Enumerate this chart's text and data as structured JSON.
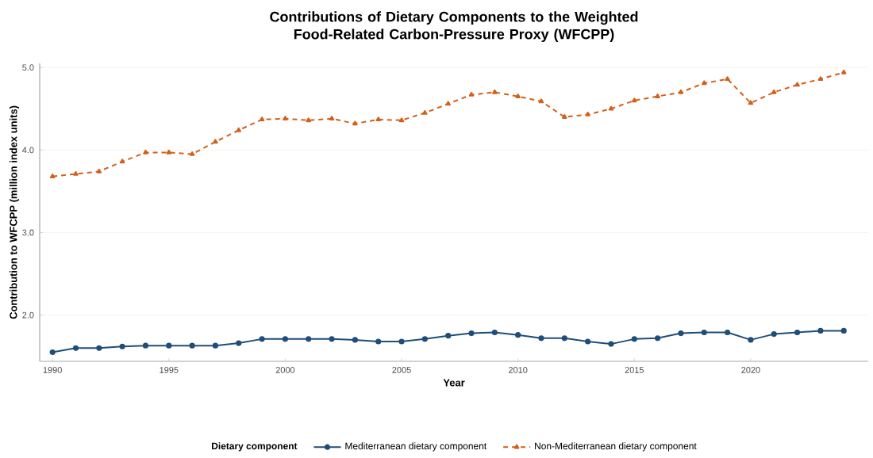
{
  "chart_data": {
    "type": "line",
    "title": "Contributions of Dietary Components to the Weighted Food-Related Carbon-Pressure Proxy (WFCPP)",
    "xlabel": "Year",
    "ylabel": "Contribution to WFCPP (million index units)",
    "legend_title": "Dietary component",
    "x": [
      1990,
      1991,
      1992,
      1993,
      1994,
      1995,
      1996,
      1997,
      1998,
      1999,
      2000,
      2001,
      2002,
      2003,
      2004,
      2005,
      2006,
      2007,
      2008,
      2009,
      2010,
      2011,
      2012,
      2013,
      2014,
      2015,
      2016,
      2017,
      2018,
      2019,
      2020,
      2021,
      2022,
      2023,
      2024
    ],
    "series": [
      {
        "name": "Mediterranean dietary component",
        "color": "#1f4e79",
        "marker": "circle",
        "line_style": "solid",
        "values": [
          1.55,
          1.6,
          1.6,
          1.62,
          1.63,
          1.63,
          1.63,
          1.63,
          1.66,
          1.71,
          1.71,
          1.71,
          1.71,
          1.7,
          1.68,
          1.68,
          1.71,
          1.75,
          1.78,
          1.79,
          1.76,
          1.72,
          1.72,
          1.68,
          1.65,
          1.71,
          1.72,
          1.78,
          1.79,
          1.79,
          1.7,
          1.77,
          1.79,
          1.81,
          1.81
        ]
      },
      {
        "name": "Non-Mediterranean dietary component",
        "color": "#d2601a",
        "marker": "triangle",
        "line_style": "dashed",
        "values": [
          3.68,
          3.71,
          3.74,
          3.86,
          3.97,
          3.97,
          3.95,
          4.1,
          4.24,
          4.37,
          4.38,
          4.36,
          4.38,
          4.32,
          4.37,
          4.36,
          4.45,
          4.56,
          4.67,
          4.7,
          4.65,
          4.59,
          4.4,
          4.43,
          4.5,
          4.6,
          4.65,
          4.7,
          4.81,
          4.86,
          4.57,
          4.7,
          4.79,
          4.86,
          4.94
        ]
      }
    ],
    "xlim": [
      1989.45,
      2025.05
    ],
    "ylim": [
      1.44,
      5.05
    ],
    "xticks": [
      1990,
      1995,
      2000,
      2005,
      2010,
      2015,
      2020
    ],
    "yticks": [
      {
        "value": 2,
        "label": "2.0"
      },
      {
        "value": 3,
        "label": "3.0"
      },
      {
        "value": 4,
        "label": "4.0"
      },
      {
        "value": 5,
        "label": "5.0"
      }
    ],
    "grid": "y",
    "legend": "bottom"
  }
}
